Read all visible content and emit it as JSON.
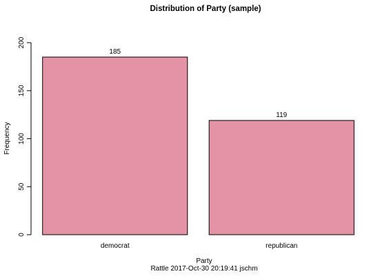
{
  "chart_data": {
    "type": "bar",
    "title": "Distribution of Party (sample)",
    "xlabel": "Party",
    "ylabel": "Frequency",
    "subtitle": "Rattle 2017-Oct-30 20:19:41 jschm",
    "categories": [
      "democrat",
      "republican"
    ],
    "values": [
      185,
      119
    ],
    "value_labels": [
      "185",
      "119"
    ],
    "ylim": [
      0,
      200
    ],
    "yticks": [
      0,
      50,
      100,
      150,
      200
    ],
    "ytick_labels": [
      "0",
      "50",
      "100",
      "150",
      "200"
    ],
    "grid": false,
    "legend": "none",
    "bar_color": "#e492a5",
    "bar_border_color": "#000000"
  }
}
